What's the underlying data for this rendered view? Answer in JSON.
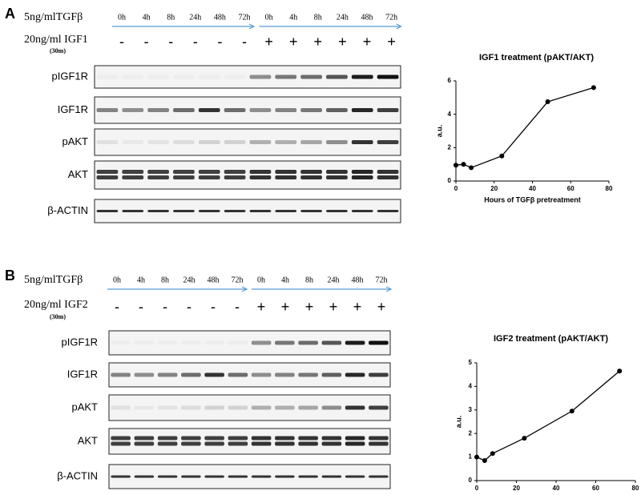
{
  "panels": [
    {
      "letter": "A",
      "treatment_label": "5ng/mlTGFβ",
      "timepoints": [
        "0h",
        "4h",
        "8h",
        "24h",
        "48h",
        "72h",
        "0h",
        "4h",
        "8h",
        "24h",
        "48h",
        "72h"
      ],
      "ligand_label": "20ng/ml IGF1",
      "ligand_duration": "(30m)",
      "ligand_signs": [
        "-",
        "-",
        "-",
        "-",
        "-",
        "-",
        "+",
        "+",
        "+",
        "+",
        "+",
        "+"
      ],
      "blots": [
        "pIGF1R",
        "IGF1R",
        "pAKT",
        "AKT",
        "β-ACTIN"
      ]
    },
    {
      "letter": "B",
      "treatment_label": "5ng/mlTGFβ",
      "timepoints": [
        "0h",
        "4h",
        "8h",
        "24h",
        "48h",
        "72h",
        "0h",
        "4h",
        "8h",
        "24h",
        "48h",
        "72h"
      ],
      "ligand_label": "20ng/ml IGF2",
      "ligand_duration": "(30m)",
      "ligand_signs": [
        "-",
        "-",
        "-",
        "-",
        "-",
        "-",
        "+",
        "+",
        "+",
        "+",
        "+",
        "+"
      ],
      "blots": [
        "pIGF1R",
        "IGF1R",
        "pAKT",
        "AKT",
        "β-ACTIN"
      ]
    }
  ],
  "chart_data": [
    {
      "type": "line",
      "title": "IGF1 treatment (pAKT/AKT)",
      "x_label": "Hours of TGFβ pretreatment",
      "y_label": "a.u.",
      "x": [
        0,
        4,
        8,
        24,
        48,
        72
      ],
      "values": [
        0.95,
        1.0,
        0.8,
        1.5,
        4.75,
        5.6
      ],
      "color": "#000000",
      "xlim": [
        0,
        80
      ],
      "ylim": [
        0,
        6
      ],
      "xticks": [
        0,
        20,
        40,
        60,
        80
      ],
      "yticks": [
        0,
        2,
        4,
        6
      ]
    },
    {
      "type": "line",
      "title": "IGF2 treatment (pAKT/AKT)",
      "x_label": "Hours of TGFβ pretreatment",
      "y_label": "a.u.",
      "x": [
        0,
        4,
        8,
        24,
        48,
        72
      ],
      "values": [
        1.0,
        0.85,
        1.15,
        1.8,
        2.95,
        4.65
      ],
      "color": "#000000",
      "xlim": [
        0,
        80
      ],
      "ylim": [
        0,
        5
      ],
      "xticks": [
        0,
        20,
        40,
        60,
        80
      ],
      "yticks": [
        0,
        1,
        2,
        3,
        4,
        5
      ]
    }
  ]
}
